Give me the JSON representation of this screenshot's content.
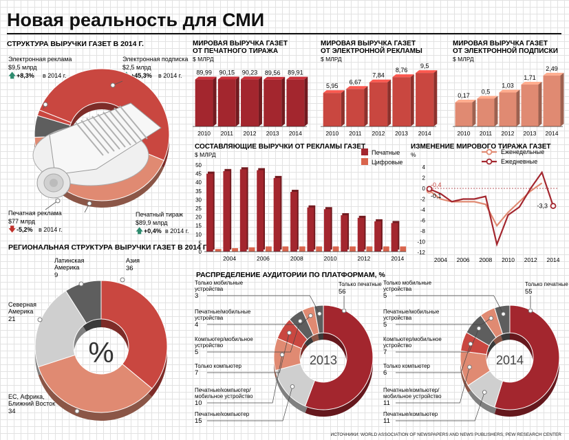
{
  "title": "Новая реальность для СМИ",
  "source": "ИСТОЧНИКИ: WORLD ASSOCIATION OF NEWSPAPERS AND NEWS PUBLISHERS, PEW RESEARCH CENTER",
  "colors": {
    "dark_red": "#a3262e",
    "red": "#c94740",
    "salmon": "#e08a72",
    "pink": "#f0b9a6",
    "dark_gray": "#5e5e5e",
    "light_gray": "#cfcfcf"
  },
  "structure": {
    "title": "СТРУКТУРА ВЫРУЧКИ ГАЗЕТ В 2014 Г.",
    "e_ads": {
      "label": "Электронная реклама",
      "amount": "$9,5 млрд",
      "change": "+8,3%",
      "year": "в 2014 г."
    },
    "e_subs": {
      "label": "Электронная подписка",
      "amount": "$2,5 млрд",
      "change": "+45,3%",
      "year": "в 2014 г."
    },
    "print_ads": {
      "label": "Печатная реклама",
      "amount": "$77 млрд",
      "change": "-5,2%",
      "year": "в 2014 г."
    },
    "print_run": {
      "label": "Печатный тираж",
      "amount": "$89,9 млрд",
      "change": "+0,4%",
      "year": "в 2014 г."
    }
  },
  "regional": {
    "title": "РЕГИОНАЛЬНАЯ СТРУКТУРА ВЫРУЧКИ ГАЗЕТ В 2014 Г.",
    "center": "%"
  },
  "audience_title": "РАСПРЕДЕЛЕНИЕ АУДИТОРИИ ПО ПЛАТФОРМАМ, %",
  "chart_data": [
    {
      "id": "print_run",
      "type": "bar",
      "title": "МИРОВАЯ ВЫРУЧКА ГАЗЕТ ОТ ПЕЧАТНОГО ТИРАЖА",
      "unit": "$ МЛРД",
      "categories": [
        "2010",
        "2011",
        "2012",
        "2013",
        "2014"
      ],
      "values": [
        89.99,
        90.15,
        90.23,
        89.56,
        89.91
      ],
      "labels": [
        "89,99",
        "90,15",
        "90,23",
        "89,56",
        "89,91"
      ],
      "color": "#a3262e"
    },
    {
      "id": "e_ads",
      "type": "bar",
      "title": "МИРОВАЯ ВЫРУЧКА ГАЗЕТ ОТ ЭЛЕКТРОННОЙ РЕКЛАМЫ",
      "unit": "$ МЛРД",
      "categories": [
        "2010",
        "2011",
        "2012",
        "2013",
        "2014"
      ],
      "values": [
        5.95,
        6.67,
        7.84,
        8.76,
        9.5
      ],
      "labels": [
        "5,95",
        "6,67",
        "7,84",
        "8,76",
        "9,5"
      ],
      "color": "#c94740"
    },
    {
      "id": "e_subs",
      "type": "bar",
      "title": "МИРОВАЯ ВЫРУЧКА ГАЗЕТ ОТ ЭЛЕКТРОННОЙ ПОДПИСКИ",
      "unit": "$ МЛРД",
      "categories": [
        "2010",
        "2011",
        "2012",
        "2013",
        "2014"
      ],
      "values": [
        0.17,
        0.5,
        1.03,
        1.71,
        2.49
      ],
      "labels": [
        "0,17",
        "0,5",
        "1,03",
        "1,71",
        "2,49"
      ],
      "color": "#e08a72"
    },
    {
      "id": "ad_components",
      "type": "bar",
      "title": "СОСТАВЛЯЮЩИЕ ВЫРУЧКИ ОТ РЕКЛАМЫ ГАЗЕТ",
      "unit": "$ МЛРД",
      "x": [
        2003,
        2004,
        2005,
        2006,
        2007,
        2008,
        2009,
        2010,
        2011,
        2012,
        2013,
        2014
      ],
      "x_ticks": [
        "2004",
        "2006",
        "2008",
        "2010",
        "2012",
        "2014"
      ],
      "y_ticks": [
        "0",
        "5",
        "10",
        "15",
        "20",
        "25",
        "30",
        "35",
        "40",
        "45",
        "50"
      ],
      "ylim": [
        0,
        50
      ],
      "series": [
        {
          "name": "Печатные",
          "values": [
            45,
            46.5,
            47.5,
            47,
            42.5,
            34.5,
            25.5,
            24.5,
            21,
            19.5,
            17.5,
            16.5
          ],
          "color": "#a3262e"
        },
        {
          "name": "Цифровые",
          "values": [
            1.5,
            2,
            2.5,
            3,
            3,
            3,
            3,
            3,
            3,
            3,
            3,
            3
          ],
          "color": "#d9654d"
        }
      ]
    },
    {
      "id": "circulation_change",
      "type": "line",
      "title": "ИЗМЕНЕНИЕ МИРОВОГО ТИРАЖА ГАЗЕТ",
      "unit": "%",
      "x": [
        2003,
        2004,
        2005,
        2006,
        2007,
        2008,
        2009,
        2010,
        2011,
        2012,
        2013,
        2014
      ],
      "x_ticks": [
        "2004",
        "2006",
        "2008",
        "2010",
        "2012",
        "2014"
      ],
      "y_ticks": [
        "4",
        "2",
        "0",
        "-2",
        "-4",
        "-6",
        "-8",
        "-10",
        "-12"
      ],
      "ylim": [
        -12,
        4
      ],
      "series": [
        {
          "name": "Еженедельные",
          "values": [
            -0.4,
            -2,
            -2.5,
            -2.5,
            -2.5,
            -3,
            -7,
            -4.5,
            -2.5,
            -0.5,
            1,
            null
          ],
          "color": "#e08a72"
        },
        {
          "name": "Ежедневные",
          "values": [
            -0.1,
            -1,
            -2.5,
            -2,
            -2,
            -1.5,
            -10.5,
            -5,
            -3.5,
            0,
            3,
            -3.3
          ],
          "color": "#a3262e"
        }
      ],
      "annotations": [
        "-0,4",
        "-0,1",
        "-3,3"
      ]
    },
    {
      "id": "revenue_structure",
      "type": "pie",
      "title": "СТРУКТУРА ВЫРУЧКИ ГАЗЕТ В 2014 Г.",
      "slices": [
        {
          "name": "Печатный тираж",
          "value": 89.9,
          "color": "#c94740"
        },
        {
          "name": "Печатная реклама",
          "value": 77,
          "color": "#e08a72"
        },
        {
          "name": "Электронная реклама",
          "value": 9.5,
          "color": "#5e5e5e"
        },
        {
          "name": "Электронная подписка",
          "value": 2.5,
          "color": "#c94740"
        }
      ]
    },
    {
      "id": "regional",
      "type": "pie",
      "title": "РЕГИОНАЛЬНАЯ СТРУКТУРА ВЫРУЧКИ ГАЗЕТ В 2014 Г.",
      "slices": [
        {
          "name": "Азия",
          "value": 36,
          "color": "#c94740"
        },
        {
          "name": "ЕС, Африка, Ближний Восток",
          "value": 34,
          "color": "#e08a72"
        },
        {
          "name": "Северная Америка",
          "value": 21,
          "color": "#cfcfcf"
        },
        {
          "name": "Латинская Америка",
          "value": 9,
          "color": "#5e5e5e"
        }
      ]
    },
    {
      "id": "audience_2013",
      "type": "pie",
      "title": "2013",
      "slices": [
        {
          "name": "Только печатные",
          "value": 56,
          "color": "#a3262e"
        },
        {
          "name": "Печатные/компьютер",
          "value": 15,
          "color": "#cfcfcf"
        },
        {
          "name": "Печатные/компьютер/мобильное устройство",
          "value": 10,
          "color": "#e08a72"
        },
        {
          "name": "Только компьютер",
          "value": 7,
          "color": "#c94740"
        },
        {
          "name": "Компьютер/мобильное устройство",
          "value": 5,
          "color": "#5e5e5e"
        },
        {
          "name": "Печатные/мобильные устройства",
          "value": 4,
          "color": "#e08a72"
        },
        {
          "name": "Только мобильные устройства",
          "value": 3,
          "color": "#5e5e5e"
        }
      ]
    },
    {
      "id": "audience_2014",
      "type": "pie",
      "title": "2014",
      "slices": [
        {
          "name": "Только печатные",
          "value": 55,
          "color": "#a3262e"
        },
        {
          "name": "Печатные/компьютер",
          "value": 11,
          "color": "#cfcfcf"
        },
        {
          "name": "Печатные/компьютер/мобильное устройство",
          "value": 11,
          "color": "#e08a72"
        },
        {
          "name": "Только компьютер",
          "value": 6,
          "color": "#c94740"
        },
        {
          "name": "Компьютер/мобильное устройство",
          "value": 7,
          "color": "#5e5e5e"
        },
        {
          "name": "Печатные/мобильные устройства",
          "value": 5,
          "color": "#e08a72"
        },
        {
          "name": "Только мобильные устройства",
          "value": 5,
          "color": "#5e5e5e"
        }
      ]
    }
  ]
}
